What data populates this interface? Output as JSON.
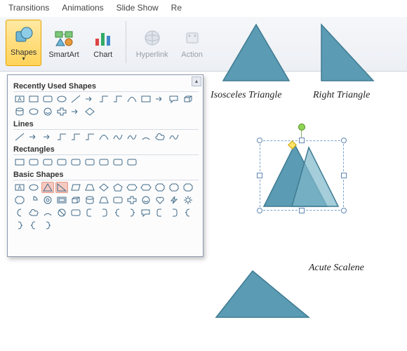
{
  "ribbon": {
    "tabs": [
      "Transitions",
      "Animations",
      "Slide Show",
      "Re"
    ]
  },
  "toolbar": {
    "shapes": "Shapes",
    "smartart": "SmartArt",
    "chart": "Chart",
    "hyperlink": "Hyperlink",
    "action": "Action"
  },
  "panel": {
    "sections": {
      "recent": "Recently Used Shapes",
      "lines": "Lines",
      "rects": "Rectangles",
      "basic": "Basic Shapes"
    }
  },
  "examples": {
    "iso": "Isosceles Triangle",
    "right": "Right Triangle",
    "scalene": "Acute Scalene"
  },
  "colors": {
    "fill": "#5b9bb3",
    "stroke": "#3f7b92",
    "shapeIcon": "#3f6a88",
    "shapeIconLight": "#6e8ba3"
  }
}
